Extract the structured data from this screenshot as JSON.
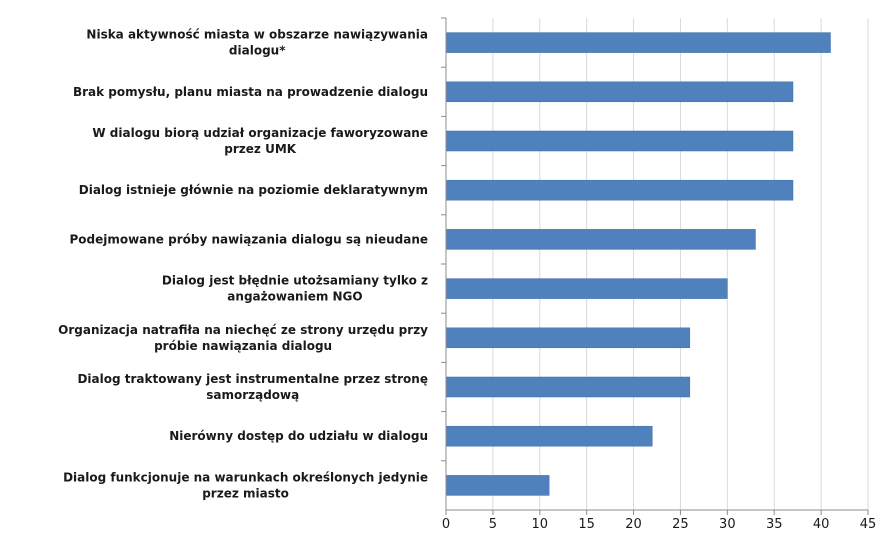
{
  "chart_data": {
    "type": "bar",
    "orientation": "horizontal",
    "title": "",
    "xlabel": "",
    "ylabel": "",
    "categories": [
      [
        "Niska aktywność miasta w obszarze nawiązywania",
        "dialogu*"
      ],
      [
        "Brak pomysłu, planu miasta na prowadzenie dialogu"
      ],
      [
        "W dialogu biorą udział organizacje faworyzowane",
        "przez UMK"
      ],
      [
        "Dialog istnieje głównie na poziomie deklaratywnym"
      ],
      [
        "Podejmowane próby nawiązania dialogu są nieudane"
      ],
      [
        "Dialog jest błędnie utożsamiany tylko z",
        "angażowaniem NGO"
      ],
      [
        "Organizacja natrafiła na niechęć ze strony urzędu przy",
        "próbie nawiązania dialogu"
      ],
      [
        "Dialog traktowany jest instrumentalne przez stronę",
        "samorządową"
      ],
      [
        "Nierówny dostęp do udziału w dialogu"
      ],
      [
        "Dialog funkcjonuje na warunkach określonych jedynie",
        "przez miasto"
      ]
    ],
    "values": [
      41,
      37,
      37,
      37,
      33,
      30,
      26,
      26,
      22,
      11
    ],
    "xlim": [
      0,
      45
    ],
    "xticks": [
      "0",
      "5",
      "10",
      "15",
      "20",
      "25",
      "30",
      "35",
      "40",
      "45"
    ],
    "grid": "vertical",
    "legend": "none",
    "colors": {
      "bar": "#4f81bd",
      "bar_stroke": "#3f6fa8",
      "grid": "#d9d9d9",
      "axis": "#8c8c8c"
    }
  }
}
